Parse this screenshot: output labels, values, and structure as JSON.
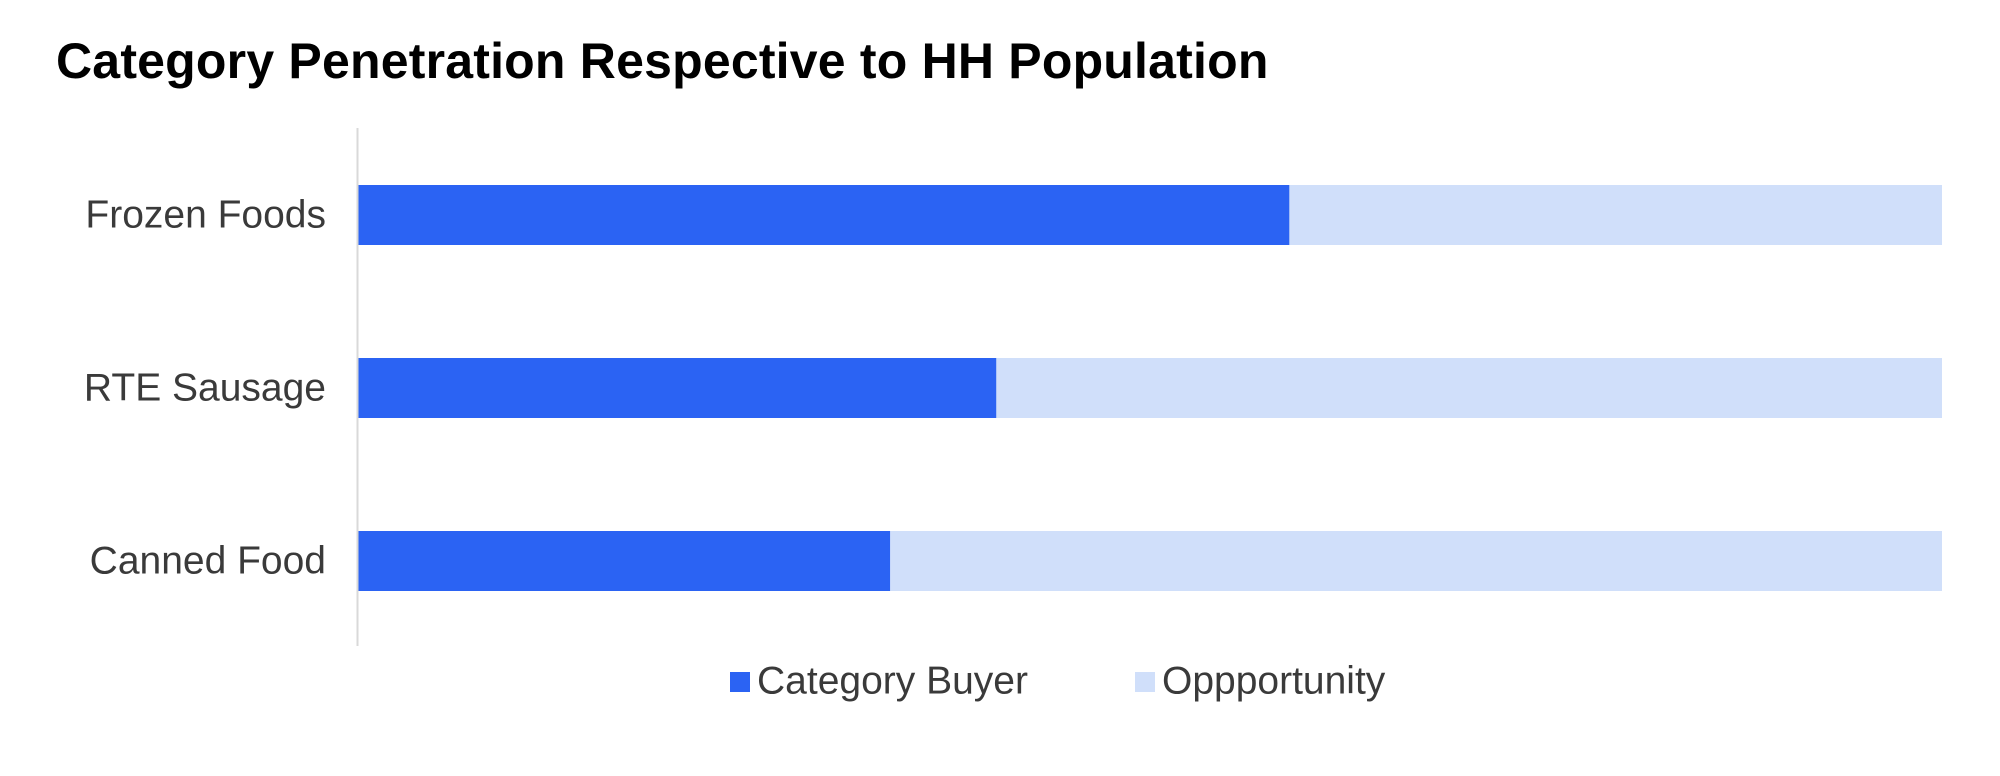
{
  "chart_data": {
    "type": "bar",
    "orientation": "horizontal",
    "stacked": true,
    "title": "Category Penetration Respective to HH Population",
    "categories": [
      "Frozen Foods",
      "RTE Sausage",
      "Canned Food"
    ],
    "series": [
      {
        "name": "Category Buyer",
        "values": [
          58.8,
          40.3,
          33.6
        ]
      },
      {
        "name": "Oppportunity",
        "values": [
          41.2,
          59.7,
          66.4
        ]
      }
    ],
    "xlim": [
      0,
      100
    ],
    "grid": false,
    "legend_position": "bottom",
    "colors": {
      "Category Buyer": "#2b63f3",
      "Oppportunity": "#d0dffa",
      "axis": "#d9d9d9"
    }
  }
}
